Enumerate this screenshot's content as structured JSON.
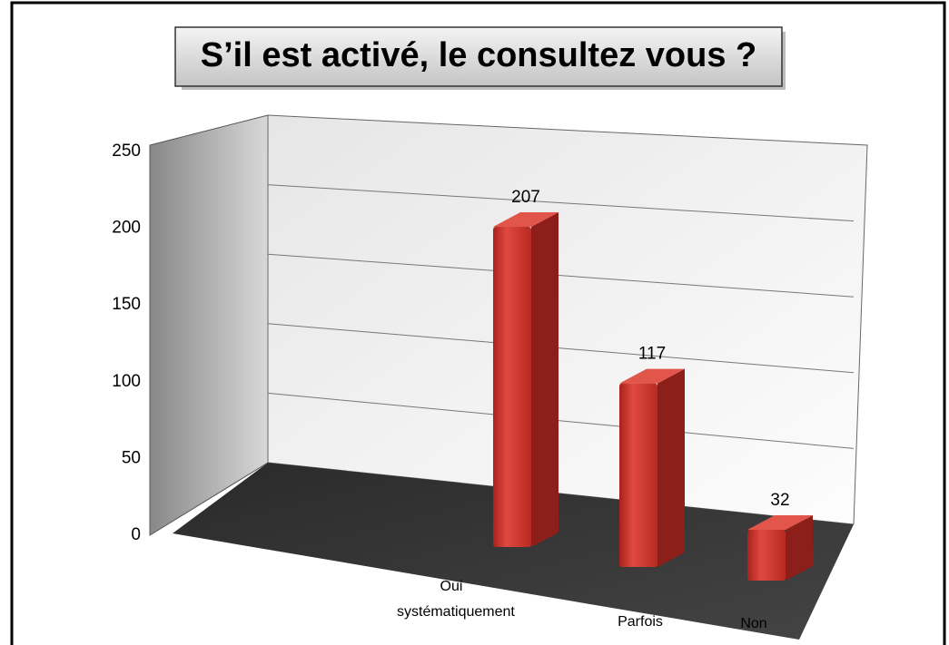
{
  "chart_data": {
    "type": "bar3d",
    "title": "S’il est activé, le consultez vous ?",
    "categories": [
      "Oui systématiquement",
      "Parfois",
      "Non"
    ],
    "values": [
      207,
      117,
      32
    ],
    "color": "#c8342c",
    "ylim": [
      0,
      250
    ],
    "yticks": [
      0,
      50,
      100,
      150,
      200,
      250
    ],
    "grid": true
  }
}
